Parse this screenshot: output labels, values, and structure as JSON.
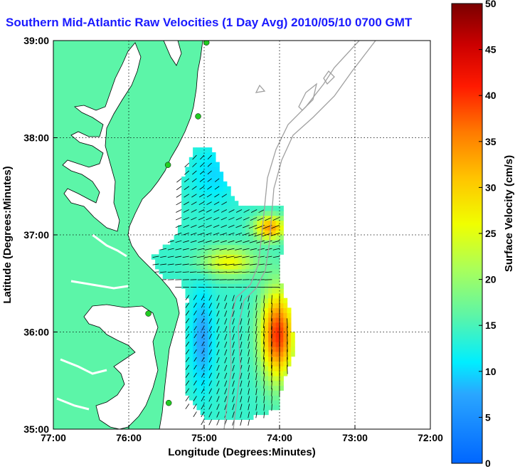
{
  "title": "Southern Mid-Atlantic Raw Velocities (1 Day Avg) 2010/05/10 0700 GMT",
  "chart_data": {
    "type": "heatmap",
    "title": "Southern Mid-Atlantic Raw Velocities (1 Day Avg) 2010/05/10 0700 GMT",
    "xlabel": "Longitude (Degrees:Minutes)",
    "ylabel": "Latitude (Degrees:Minutes)",
    "xlim": [
      -77,
      -72
    ],
    "ylim": [
      35,
      39
    ],
    "x_ticks": [
      {
        "value": -77,
        "label": "77:00"
      },
      {
        "value": -76,
        "label": "76:00"
      },
      {
        "value": -75,
        "label": "75:00"
      },
      {
        "value": -74,
        "label": "74:00"
      },
      {
        "value": -73,
        "label": "73:00"
      },
      {
        "value": -72,
        "label": "72:00"
      }
    ],
    "y_ticks": [
      {
        "value": 35,
        "label": "35:00"
      },
      {
        "value": 36,
        "label": "36:00"
      },
      {
        "value": 37,
        "label": "37:00"
      },
      {
        "value": 38,
        "label": "38:00"
      },
      {
        "value": 39,
        "label": "39:00"
      }
    ],
    "grid": true,
    "colorbar": {
      "label": "Surface Velocity (cm/s)",
      "min": 0,
      "max": 50,
      "ticks": [
        0,
        5,
        10,
        15,
        20,
        25,
        30,
        35,
        40,
        45,
        50
      ]
    },
    "stations": [
      {
        "lon": -74.97,
        "lat": 38.98
      },
      {
        "lon": -75.08,
        "lat": 38.22
      },
      {
        "lon": -75.48,
        "lat": 37.72
      },
      {
        "lon": -75.74,
        "lat": 36.19
      },
      {
        "lon": -75.47,
        "lat": 35.27
      }
    ]
  },
  "colors": {
    "land": "#5cf5a8",
    "water": "#ffffff",
    "bathymetry": "#a0a0a0",
    "title": "#1a1aff",
    "station": "#22cc22"
  }
}
